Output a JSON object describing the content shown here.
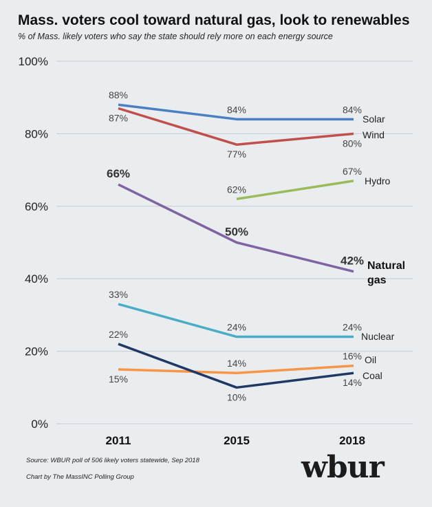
{
  "chart_data": {
    "type": "line",
    "title": "Mass. voters cool toward natural gas, look to renewables",
    "subtitle": "% of Mass. likely voters who say the state should rely more on each energy source",
    "xlabel": "",
    "ylabel": "",
    "categories": [
      "2011",
      "2015",
      "2018"
    ],
    "ylim": [
      0,
      100
    ],
    "yticks": [
      0,
      20,
      40,
      60,
      80,
      100
    ],
    "ytick_labels": [
      "0%",
      "20%",
      "40%",
      "60%",
      "80%",
      "100%"
    ],
    "grid": true,
    "series": [
      {
        "name": "Solar",
        "label": "Solar",
        "color": "#4a7fc1",
        "values": [
          88,
          84,
          84
        ],
        "value_labels": [
          "88%",
          "84%",
          "84%"
        ],
        "label_pos": [
          "above",
          "above",
          "above"
        ],
        "bold": false
      },
      {
        "name": "Wind",
        "label": "Wind",
        "color": "#c0504d",
        "values": [
          87,
          77,
          80
        ],
        "value_labels": [
          "87%",
          "77%",
          "80%"
        ],
        "label_pos": [
          "below",
          "below",
          "below"
        ],
        "bold": false
      },
      {
        "name": "Hydro",
        "label": "Hydro",
        "color": "#9bbb59",
        "values": [
          null,
          62,
          67
        ],
        "value_labels": [
          "",
          "62%",
          "67%"
        ],
        "label_pos": [
          "",
          "above",
          "above"
        ],
        "bold": false
      },
      {
        "name": "Natural gas",
        "label": "Natural gas",
        "color": "#8064a2",
        "values": [
          66,
          50,
          42
        ],
        "value_labels": [
          "66%",
          "50%",
          "42%"
        ],
        "label_pos": [
          "above",
          "above",
          "above"
        ],
        "bold": true
      },
      {
        "name": "Nuclear",
        "label": "Nuclear",
        "color": "#4bacc6",
        "values": [
          33,
          24,
          24
        ],
        "value_labels": [
          "33%",
          "24%",
          "24%"
        ],
        "label_pos": [
          "above",
          "above",
          "above"
        ],
        "bold": false
      },
      {
        "name": "Oil",
        "label": "Oil",
        "color": "#f79646",
        "values": [
          15,
          14,
          16
        ],
        "value_labels": [
          "15%",
          "14%",
          "16%"
        ],
        "label_pos": [
          "below",
          "above",
          "above"
        ],
        "bold": false
      },
      {
        "name": "Coal",
        "label": "Coal",
        "color": "#1f3864",
        "values": [
          22,
          10,
          14
        ],
        "value_labels": [
          "22%",
          "10%",
          "14%"
        ],
        "label_pos": [
          "above",
          "below",
          "below"
        ],
        "bold": false
      }
    ]
  },
  "footer": {
    "source": "Source: WBUR poll of 506 likely voters statewide, Sep 2018",
    "credit": "Chart by The MassINC Polling Group",
    "logo_text": "wbur"
  }
}
